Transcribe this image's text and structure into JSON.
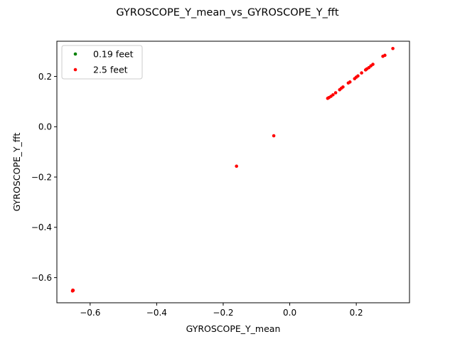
{
  "chart_data": {
    "type": "scatter",
    "title": "GYROSCOPE_Y_mean_vs_GYROSCOPE_Y_fft",
    "xlabel": "GYROSCOPE_Y_mean",
    "ylabel": "GYROSCOPE_Y_fft",
    "xlim": [
      -0.7,
      0.36
    ],
    "ylim": [
      -0.7,
      0.34
    ],
    "xticks": [
      -0.6,
      -0.4,
      -0.2,
      0.0,
      0.2
    ],
    "xtick_labels": [
      "−0.6",
      "−0.4",
      "−0.2",
      "0.0",
      "0.2"
    ],
    "yticks": [
      -0.6,
      -0.4,
      -0.2,
      0.0,
      0.2
    ],
    "ytick_labels": [
      "−0.6",
      "−0.4",
      "−0.2",
      "0.0",
      "0.2"
    ],
    "grid": false,
    "legend_position": "top-left",
    "series": [
      {
        "name": "0.19 feet",
        "color": "#008000",
        "points": []
      },
      {
        "name": "2.5 feet",
        "color": "#ff0000",
        "points": [
          [
            -0.653,
            -0.653
          ],
          [
            -0.651,
            -0.651
          ],
          [
            -0.652,
            -0.65
          ],
          [
            -0.16,
            -0.157
          ],
          [
            -0.048,
            -0.036
          ],
          [
            0.114,
            0.113
          ],
          [
            0.118,
            0.116
          ],
          [
            0.124,
            0.121
          ],
          [
            0.13,
            0.127
          ],
          [
            0.138,
            0.135
          ],
          [
            0.15,
            0.147
          ],
          [
            0.155,
            0.153
          ],
          [
            0.16,
            0.158
          ],
          [
            0.176,
            0.174
          ],
          [
            0.181,
            0.178
          ],
          [
            0.195,
            0.191
          ],
          [
            0.2,
            0.197
          ],
          [
            0.205,
            0.202
          ],
          [
            0.216,
            0.214
          ],
          [
            0.228,
            0.226
          ],
          [
            0.232,
            0.23
          ],
          [
            0.238,
            0.235
          ],
          [
            0.244,
            0.242
          ],
          [
            0.25,
            0.248
          ],
          [
            0.28,
            0.28
          ],
          [
            0.286,
            0.284
          ],
          [
            0.31,
            0.311
          ]
        ]
      }
    ]
  }
}
